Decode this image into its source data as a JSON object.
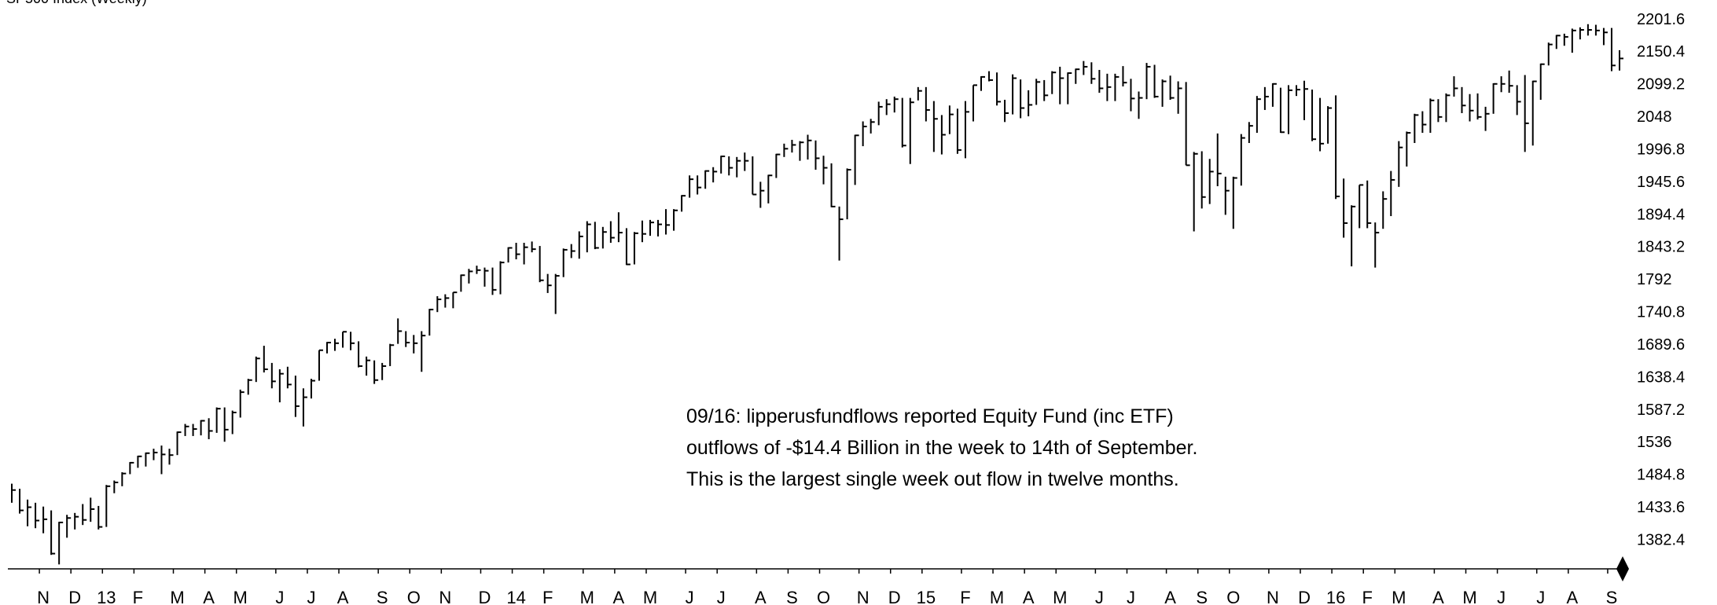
{
  "chart_data": {
    "type": "hlc",
    "title": "SP500 Index (Weekly)",
    "annotation": [
      "09/16: lipperusfundflows reported Equity Fund (inc ETF)",
      "outflows of -$14.4 Billion in the week to 14th of September.",
      "This is the largest single week out flow in twelve months."
    ],
    "color": "#000000",
    "ylim": [
      1336,
      2231
    ],
    "yticks": [
      1382.4,
      1433.6,
      1484.8,
      1536,
      1587.2,
      1638.4,
      1689.6,
      1740.8,
      1792,
      1843.2,
      1894.4,
      1945.6,
      1996.8,
      2048,
      2099.2,
      2150.4,
      2201.6
    ],
    "grid": false,
    "categories": [
      null,
      null,
      null,
      null,
      "N",
      null,
      null,
      null,
      "D",
      null,
      null,
      null,
      "13",
      null,
      null,
      null,
      "F",
      null,
      null,
      null,
      null,
      "M",
      null,
      null,
      null,
      "A",
      null,
      null,
      null,
      "M",
      null,
      null,
      null,
      null,
      "J",
      null,
      null,
      null,
      "J",
      null,
      null,
      null,
      "A",
      null,
      null,
      null,
      null,
      "S",
      null,
      null,
      null,
      "O",
      null,
      null,
      null,
      "N",
      null,
      null,
      null,
      null,
      "D",
      null,
      null,
      null,
      "14",
      null,
      null,
      null,
      "F",
      null,
      null,
      null,
      null,
      "M",
      null,
      null,
      null,
      "A",
      null,
      null,
      null,
      "M",
      null,
      null,
      null,
      null,
      "J",
      null,
      null,
      null,
      "J",
      null,
      null,
      null,
      null,
      "A",
      null,
      null,
      null,
      "S",
      null,
      null,
      null,
      "O",
      null,
      null,
      null,
      null,
      "N",
      null,
      null,
      null,
      "D",
      null,
      null,
      null,
      "15",
      null,
      null,
      null,
      null,
      "F",
      null,
      null,
      null,
      "M",
      null,
      null,
      null,
      "A",
      null,
      null,
      null,
      "M",
      null,
      null,
      null,
      null,
      "J",
      null,
      null,
      null,
      "J",
      null,
      null,
      null,
      null,
      "A",
      null,
      null,
      null,
      "S",
      null,
      null,
      null,
      "O",
      null,
      null,
      null,
      null,
      "N",
      null,
      null,
      null,
      "D",
      null,
      null,
      null,
      "16",
      null,
      null,
      null,
      "F",
      null,
      null,
      null,
      "M",
      null,
      null,
      null,
      null,
      "A",
      null,
      null,
      null,
      "M",
      null,
      null,
      null,
      "J",
      null,
      null,
      null,
      null,
      "J",
      null,
      null,
      null,
      "A",
      null,
      null,
      null,
      null,
      "S",
      null
    ],
    "close": [
      1460,
      1428,
      1433,
      1412,
      1414,
      1360,
      1409,
      1416,
      1418,
      1413,
      1430,
      1402,
      1466,
      1472,
      1486,
      1503,
      1513,
      1518,
      1519,
      1516,
      1515,
      1551,
      1560,
      1556,
      1569,
      1553,
      1588,
      1555,
      1582,
      1614,
      1633,
      1667,
      1650,
      1631,
      1643,
      1626,
      1592,
      1606,
      1632,
      1680,
      1692,
      1691,
      1709,
      1691,
      1655,
      1664,
      1633,
      1655,
      1688,
      1710,
      1692,
      1691,
      1703,
      1744,
      1760,
      1762,
      1771,
      1798,
      1804,
      1806,
      1805,
      1775,
      1818,
      1841,
      1831,
      1842,
      1839,
      1790,
      1782,
      1797,
      1838,
      1836,
      1859,
      1878,
      1841,
      1866,
      1857,
      1865,
      1815,
      1864,
      1863,
      1881,
      1878,
      1877,
      1900,
      1923,
      1949,
      1936,
      1962,
      1961,
      1985,
      1967,
      1978,
      1978,
      1925,
      1931,
      1955,
      1988,
      1997,
      2003,
      2007,
      2010,
      1982,
      1967,
      1906,
      1886,
      1964,
      2018,
      2032,
      2039,
      2063,
      2067,
      2075,
      2002,
      2070,
      2088,
      2058,
      2044,
      2019,
      2051,
      1995,
      2055,
      2097,
      2110,
      2105,
      2071,
      2053,
      2108,
      2061,
      2066,
      2102,
      2081,
      2117,
      2108,
      2116,
      2122,
      2126,
      2107,
      2092,
      2094,
      2110,
      2101,
      2076,
      2077,
      2126,
      2079,
      2103,
      2077,
      2092,
      1971,
      1989,
      1921,
      1961,
      1958,
      1931,
      1951,
      2014,
      2033,
      2075,
      2079,
      2099,
      2023,
      2089,
      2090,
      2091,
      2012,
      2005,
      2061,
      1922,
      1880,
      1906,
      1940,
      1880,
      1865,
      1918,
      1948,
      1999,
      2022,
      2050,
      2035,
      2073,
      2047,
      2081,
      2092,
      2065,
      2057,
      2047,
      2052,
      2099,
      2099,
      2096,
      2071,
      2037,
      2103,
      2130,
      2161,
      2175,
      2173,
      2183,
      2184,
      2184,
      2183,
      2180,
      2128,
      2139
    ],
    "high": [
      1470,
      1462,
      1445,
      1440,
      1434,
      1428,
      1410,
      1421,
      1424,
      1438,
      1448,
      1435,
      1468,
      1475,
      1488,
      1504,
      1514,
      1519,
      1525,
      1530,
      1525,
      1552,
      1564,
      1564,
      1570,
      1573,
      1590,
      1590,
      1585,
      1618,
      1635,
      1670,
      1687,
      1660,
      1650,
      1654,
      1640,
      1620,
      1635,
      1680,
      1693,
      1698,
      1709,
      1709,
      1694,
      1670,
      1664,
      1660,
      1690,
      1730,
      1710,
      1704,
      1710,
      1745,
      1765,
      1768,
      1771,
      1799,
      1808,
      1813,
      1810,
      1810,
      1820,
      1842,
      1849,
      1849,
      1851,
      1844,
      1800,
      1800,
      1840,
      1847,
      1867,
      1883,
      1882,
      1874,
      1883,
      1897,
      1872,
      1866,
      1884,
      1885,
      1885,
      1902,
      1902,
      1924,
      1955,
      1955,
      1963,
      1968,
      1986,
      1985,
      1984,
      1991,
      1985,
      1945,
      1956,
      1989,
      2005,
      2011,
      2009,
      2019,
      2010,
      1986,
      1974,
      1906,
      1966,
      2019,
      2040,
      2044,
      2071,
      2075,
      2079,
      2077,
      2077,
      2094,
      2094,
      2072,
      2050,
      2065,
      2060,
      2072,
      2097,
      2111,
      2119,
      2117,
      2074,
      2114,
      2106,
      2089,
      2107,
      2105,
      2119,
      2126,
      2117,
      2123,
      2135,
      2133,
      2121,
      2115,
      2115,
      2127,
      2107,
      2087,
      2132,
      2129,
      2106,
      2112,
      2103,
      2102,
      1992,
      1993,
      1981,
      2021,
      1953,
      1953,
      2020,
      2039,
      2080,
      2094,
      2100,
      2093,
      2097,
      2097,
      2104,
      2090,
      2077,
      2064,
      2081,
      1950,
      1908,
      1940,
      1947,
      1881,
      1930,
      1962,
      2009,
      2024,
      2052,
      2056,
      2076,
      2075,
      2084,
      2111,
      2094,
      2083,
      2084,
      2063,
      2100,
      2111,
      2120,
      2097,
      2113,
      2104,
      2131,
      2164,
      2176,
      2178,
      2186,
      2188,
      2193,
      2192,
      2187,
      2187,
      2152
    ],
    "low": [
      1440,
      1423,
      1403,
      1400,
      1392,
      1358,
      1343,
      1385,
      1398,
      1405,
      1410,
      1398,
      1402,
      1455,
      1466,
      1485,
      1495,
      1497,
      1507,
      1485,
      1500,
      1515,
      1545,
      1545,
      1546,
      1540,
      1550,
      1536,
      1548,
      1574,
      1610,
      1630,
      1645,
      1620,
      1598,
      1620,
      1575,
      1560,
      1604,
      1632,
      1675,
      1679,
      1684,
      1680,
      1653,
      1640,
      1627,
      1633,
      1655,
      1690,
      1685,
      1675,
      1646,
      1703,
      1740,
      1747,
      1746,
      1772,
      1785,
      1800,
      1780,
      1767,
      1768,
      1818,
      1823,
      1815,
      1834,
      1787,
      1770,
      1737,
      1795,
      1825,
      1824,
      1834,
      1839,
      1840,
      1849,
      1850,
      1814,
      1815,
      1850,
      1860,
      1859,
      1862,
      1868,
      1898,
      1920,
      1925,
      1934,
      1944,
      1958,
      1955,
      1952,
      1962,
      1925,
      1904,
      1911,
      1951,
      1984,
      1991,
      1978,
      1980,
      1964,
      1941,
      1905,
      1821,
      1886,
      1940,
      2001,
      2021,
      2034,
      2050,
      2054,
      1999,
      1973,
      2073,
      2040,
      1992,
      1988,
      2020,
      1989,
      1982,
      2040,
      2088,
      2103,
      2065,
      2039,
      2051,
      2045,
      2048,
      2066,
      2072,
      2083,
      2067,
      2067,
      2099,
      2113,
      2099,
      2085,
      2072,
      2072,
      2095,
      2056,
      2044,
      2075,
      2077,
      2063,
      2074,
      2052,
      1971,
      1867,
      1903,
      1910,
      1938,
      1893,
      1871,
      1939,
      2006,
      2022,
      2058,
      2063,
      2022,
      2020,
      2080,
      2042,
      2009,
      1993,
      2005,
      1918,
      1857,
      1812,
      1872,
      1872,
      1810,
      1871,
      1891,
      1937,
      1969,
      2006,
      2022,
      2022,
      2039,
      2039,
      2079,
      2053,
      2040,
      2043,
      2025,
      2052,
      2086,
      2085,
      2050,
      1992,
      2002,
      2074,
      2128,
      2154,
      2159,
      2148,
      2169,
      2175,
      2175,
      2160,
      2119,
      2120
    ]
  }
}
